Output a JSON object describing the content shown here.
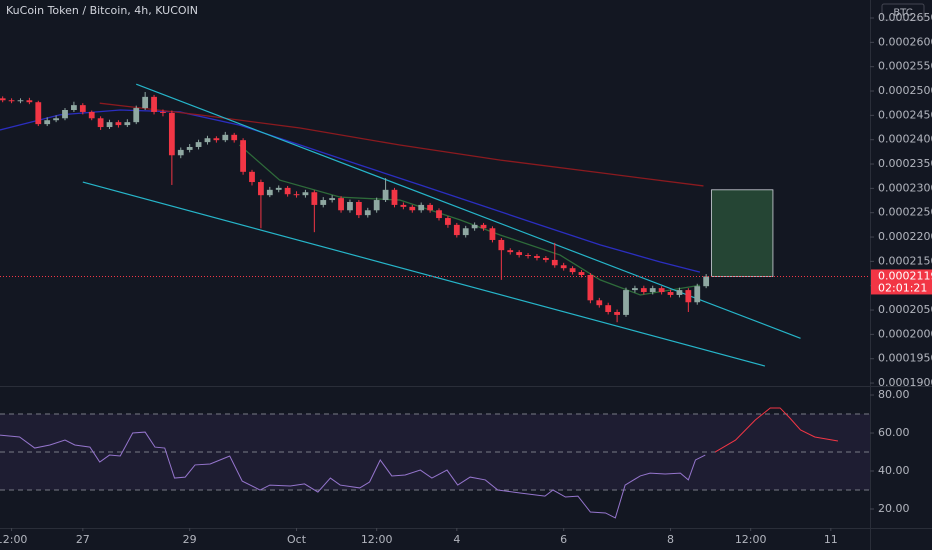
{
  "chart_data": {
    "type": "candlestick",
    "title": "KuCoin Token / Bitcoin, 4h, KUCOIN",
    "currency": "BTC",
    "up_color": "#8fa8a2",
    "down_color": "#f23645",
    "x": [
      -9,
      -8,
      -7,
      -6,
      -5,
      -4,
      -3,
      -2,
      -1,
      0,
      1,
      2,
      3,
      4,
      5,
      6,
      7,
      8,
      9,
      10,
      11,
      12,
      13,
      14,
      15,
      16,
      17,
      18,
      19,
      20,
      21,
      22,
      23,
      24,
      25,
      26,
      27,
      28,
      29,
      30,
      31,
      32,
      33,
      34,
      35,
      36,
      37,
      38,
      39,
      40,
      41,
      42,
      43,
      44,
      45,
      46,
      47,
      48,
      49,
      50,
      51,
      52,
      53,
      54,
      55,
      56,
      57,
      58,
      59,
      60,
      61,
      62,
      63,
      64,
      65,
      66,
      67,
      68,
      69,
      70
    ],
    "open": [
      0.0002485,
      0.0002481,
      0.0002479,
      0.0002481,
      0.0002477,
      0.0002432,
      0.000244,
      0.0002444,
      0.0002461,
      0.0002471,
      0.0002457,
      0.0002444,
      0.0002426,
      0.0002436,
      0.000243,
      0.0002436,
      0.0002465,
      0.0002488,
      0.0002457,
      0.0002455,
      0.0002368,
      0.0002379,
      0.0002385,
      0.0002395,
      0.0002403,
      0.0002399,
      0.000241,
      0.0002399,
      0.0002334,
      0.0002313,
      0.0002286,
      0.0002297,
      0.0002301,
      0.0002288,
      0.0002286,
      0.0002292,
      0.0002266,
      0.0002276,
      0.000228,
      0.0002255,
      0.0002272,
      0.0002245,
      0.0002255,
      0.0002276,
      0.0002297,
      0.0002266,
      0.0002262,
      0.0002255,
      0.0002266,
      0.0002255,
      0.0002239,
      0.0002225,
      0.0002204,
      0.0002218,
      0.0002225,
      0.0002218,
      0.0002194,
      0.0002173,
      0.0002169,
      0.0002163,
      0.0002161,
      0.0002157,
      0.0002153,
      0.0002142,
      0.0002136,
      0.0002128,
      0.0002122,
      0.000207,
      0.000206,
      0.0002046,
      0.000204,
      0.0002091,
      0.0002095,
      0.0002087,
      0.0002095,
      0.0002087,
      0.0002081,
      0.0002091,
      0.0002066,
      0.0002099
    ],
    "high": [
      0.0002489,
      0.0002485,
      0.0002485,
      0.0002486,
      0.000248,
      0.0002446,
      0.000245,
      0.0002465,
      0.0002478,
      0.0002475,
      0.000246,
      0.0002448,
      0.0002441,
      0.000244,
      0.0002442,
      0.000247,
      0.0002498,
      0.0002492,
      0.0002462,
      0.000246,
      0.0002384,
      0.0002391,
      0.00024,
      0.0002408,
      0.0002407,
      0.0002416,
      0.0002414,
      0.0002403,
      0.0002338,
      0.0002318,
      0.0002303,
      0.0002306,
      0.0002305,
      0.0002294,
      0.0002297,
      0.0002296,
      0.0002282,
      0.0002286,
      0.0002284,
      0.0002277,
      0.0002276,
      0.000226,
      0.0002281,
      0.0002321,
      0.0002301,
      0.0002271,
      0.0002266,
      0.0002271,
      0.000227,
      0.0002259,
      0.0002243,
      0.0002229,
      0.0002223,
      0.000223,
      0.0002229,
      0.0002222,
      0.0002198,
      0.0002177,
      0.0002173,
      0.0002167,
      0.0002165,
      0.0002161,
      0.0002188,
      0.0002147,
      0.000214,
      0.0002132,
      0.0002126,
      0.0002075,
      0.0002065,
      0.0002051,
      0.0002096,
      0.00021,
      0.00021,
      0.00021,
      0.0002099,
      0.0002092,
      0.0002096,
      0.0002095,
      0.0002104,
      0.0002124
    ],
    "low": [
      0.0002477,
      0.0002475,
      0.0002475,
      0.0002473,
      0.0002428,
      0.0002428,
      0.0002436,
      0.000244,
      0.0002457,
      0.0002452,
      0.000244,
      0.000242,
      0.0002422,
      0.0002425,
      0.0002426,
      0.0002432,
      0.0002461,
      0.0002452,
      0.0002448,
      0.0002307,
      0.0002362,
      0.0002374,
      0.000238,
      0.000239,
      0.0002394,
      0.0002395,
      0.0002394,
      0.0002328,
      0.0002306,
      0.0002218,
      0.0002282,
      0.0002292,
      0.0002283,
      0.0002281,
      0.0002281,
      0.000221,
      0.0002261,
      0.0002271,
      0.000225,
      0.000225,
      0.0002239,
      0.000224,
      0.000225,
      0.0002272,
      0.0002261,
      0.0002257,
      0.000225,
      0.000225,
      0.000225,
      0.0002234,
      0.0002219,
      0.0002199,
      0.0002199,
      0.0002213,
      0.0002213,
      0.0002189,
      0.0002112,
      0.0002164,
      0.0002158,
      0.0002156,
      0.0002152,
      0.0002148,
      0.0002137,
      0.0002131,
      0.0002123,
      0.0002117,
      0.0002064,
      0.0002055,
      0.0002041,
      0.0002025,
      0.0002036,
      0.0002086,
      0.0002082,
      0.0002082,
      0.0002082,
      0.0002076,
      0.0002076,
      0.0002046,
      0.0002061,
      0.0002095
    ],
    "close": [
      0.0002481,
      0.0002479,
      0.0002481,
      0.0002477,
      0.0002432,
      0.000244,
      0.0002444,
      0.0002461,
      0.0002471,
      0.0002457,
      0.0002444,
      0.0002426,
      0.0002436,
      0.000243,
      0.0002436,
      0.0002465,
      0.0002488,
      0.0002457,
      0.0002455,
      0.0002368,
      0.0002379,
      0.0002385,
      0.0002395,
      0.0002403,
      0.0002399,
      0.000241,
      0.0002399,
      0.0002334,
      0.0002313,
      0.0002286,
      0.0002297,
      0.0002301,
      0.0002288,
      0.0002286,
      0.0002292,
      0.0002266,
      0.0002276,
      0.000228,
      0.0002255,
      0.0002272,
      0.0002245,
      0.0002255,
      0.0002276,
      0.0002297,
      0.0002266,
      0.0002262,
      0.0002255,
      0.0002266,
      0.0002255,
      0.0002239,
      0.0002225,
      0.0002204,
      0.0002218,
      0.0002225,
      0.0002218,
      0.0002194,
      0.0002173,
      0.0002169,
      0.0002163,
      0.0002161,
      0.0002157,
      0.0002153,
      0.0002142,
      0.0002136,
      0.0002128,
      0.0002122,
      0.000207,
      0.000206,
      0.0002046,
      0.000204,
      0.0002091,
      0.0002095,
      0.0002087,
      0.0002095,
      0.0002087,
      0.0002081,
      0.0002091,
      0.0002066,
      0.0002099,
      0.0002119
    ],
    "xlim": [
      -9.3,
      88.4
    ],
    "xticks": [
      {
        "value": -8,
        "label": "12:00"
      },
      {
        "value": 0,
        "label": "27"
      },
      {
        "value": 12,
        "label": "29"
      },
      {
        "value": 24,
        "label": "Oct"
      },
      {
        "value": 33,
        "label": "12:00"
      },
      {
        "value": 42,
        "label": "4"
      },
      {
        "value": 54,
        "label": "6"
      },
      {
        "value": 66,
        "label": "8"
      },
      {
        "value": 75,
        "label": "12:00"
      },
      {
        "value": 84,
        "label": "11"
      }
    ],
    "ylim": [
      0.0001896,
      0.0002687
    ],
    "yticks": [
      {
        "value": 0.00019,
        "label": "0.0001900"
      },
      {
        "value": 0.000195,
        "label": "0.0001950"
      },
      {
        "value": 0.0002,
        "label": "0.0002000"
      },
      {
        "value": 0.000205,
        "label": "0.0002050"
      },
      {
        "value": 0.00021,
        "label": "0.0002100"
      },
      {
        "value": 0.000215,
        "label": "0.0002150"
      },
      {
        "value": 0.00022,
        "label": "0.0002200"
      },
      {
        "value": 0.000225,
        "label": "0.0002250"
      },
      {
        "value": 0.00023,
        "label": "0.0002300"
      },
      {
        "value": 0.000235,
        "label": "0.0002350"
      },
      {
        "value": 0.00024,
        "label": "0.0002400"
      },
      {
        "value": 0.000245,
        "label": "0.0002450"
      },
      {
        "value": 0.00025,
        "label": "0.0002500"
      },
      {
        "value": 0.000255,
        "label": "0.0002550"
      },
      {
        "value": 0.00026,
        "label": "0.0002600"
      },
      {
        "value": 0.000265,
        "label": "0.0002650"
      }
    ],
    "last_price": {
      "value": 0.0002119,
      "label": "0.0002119",
      "countdown": "02:01:21",
      "color": "#f23645"
    },
    "moving_averages": [
      {
        "color": "#2b2ec0",
        "x": [
          -9.3,
          -2.6,
          4.2,
          10.9,
          17.6,
          24.4,
          31.1,
          37.9,
          44.6,
          51.3,
          58.1,
          64.8,
          69.3
        ],
        "values": [
          0.000242,
          0.0002451,
          0.0002461,
          0.0002457,
          0.000243,
          0.0002389,
          0.0002348,
          0.0002307,
          0.0002266,
          0.0002225,
          0.0002184,
          0.0002149,
          0.0002128
        ]
      },
      {
        "color": "#8b1a1f",
        "x": [
          1.9,
          13.1,
          24.4,
          35.6,
          46.9,
          58.1,
          69.7
        ],
        "values": [
          0.0002475,
          0.0002451,
          0.0002424,
          0.0002389,
          0.0002358,
          0.0002332,
          0.0002305
        ]
      },
      {
        "color": "#2e6b3a",
        "x": [
          17.6,
          22.1,
          28.9,
          35.6,
          42.4,
          46.9,
          53.6,
          58.1,
          62.6,
          69.3
        ],
        "values": [
          0.0002389,
          0.0002317,
          0.0002282,
          0.0002276,
          0.0002235,
          0.0002204,
          0.0002163,
          0.0002112,
          0.0002081,
          0.0002101
        ]
      }
    ],
    "trendlines": [
      {
        "color": "#26b5c9",
        "x": [
          6.0,
          80.6
        ],
        "values": [
          0.0002514,
          0.0001992
        ]
      },
      {
        "color": "#26b5c9",
        "x": [
          0,
          76.6
        ],
        "values": [
          0.0002313,
          0.0001935
        ]
      }
    ],
    "position_box": {
      "color": "#2e5a3c",
      "x": [
        70.6,
        77.5
      ],
      "values": [
        0.0002119,
        0.0002297
      ]
    },
    "rsi": {
      "color": "#9575cd",
      "x": [
        -9.3,
        -7.1,
        -5.4,
        -3.7,
        -2.0,
        -0.9,
        0.8,
        1.9,
        3.0,
        4.2,
        5.6,
        7.0,
        8.1,
        9.2,
        10.3,
        11.5,
        12.6,
        14.3,
        15.4,
        16.5,
        17.9,
        19.9,
        21.0,
        23.3,
        24.9,
        26.4,
        27.8,
        28.9,
        31.1,
        32.2,
        33.4,
        34.7,
        36.2,
        37.9,
        39.2,
        40.9,
        42.1,
        43.5,
        45.2,
        46.6,
        49.1,
        51.9,
        52.8,
        54.2,
        55.6,
        57.0,
        58.7,
        59.8,
        60.9,
        62.6,
        63.7,
        65.4,
        67.1,
        68.0,
        68.8,
        69.9
      ],
      "values": [
        58.9,
        57.9,
        52.1,
        53.7,
        56.3,
        53.7,
        52.6,
        44.7,
        48.4,
        47.9,
        60.0,
        60.5,
        52.6,
        52.1,
        36.3,
        36.8,
        43.2,
        43.7,
        45.8,
        47.9,
        34.7,
        30.0,
        32.6,
        32.1,
        33.2,
        28.9,
        36.3,
        32.6,
        31.1,
        34.2,
        45.8,
        37.4,
        37.9,
        40.5,
        36.3,
        40.5,
        32.6,
        36.8,
        35.3,
        30.0,
        28.4,
        26.8,
        30.0,
        26.3,
        26.8,
        18.4,
        17.9,
        15.3,
        32.6,
        37.4,
        38.9,
        38.4,
        38.9,
        35.3,
        45.8,
        48.4
      ],
      "projection": {
        "color": "#f23645",
        "x": [
          71.0,
          73.3,
          75.5,
          77.2,
          78.3,
          79.4,
          80.6,
          82.2,
          84.8
        ],
        "values": [
          50.0,
          56.3,
          66.8,
          73.2,
          73.2,
          67.9,
          61.6,
          57.9,
          55.8
        ]
      },
      "ylim": [
        10,
        83.7
      ],
      "yticks": [
        {
          "value": 20,
          "label": "20.00"
        },
        {
          "value": 40,
          "label": "40.00"
        },
        {
          "value": 60,
          "label": "60.00"
        },
        {
          "value": 80,
          "label": "80.00"
        }
      ],
      "levels": [
        30,
        50,
        70
      ]
    }
  }
}
